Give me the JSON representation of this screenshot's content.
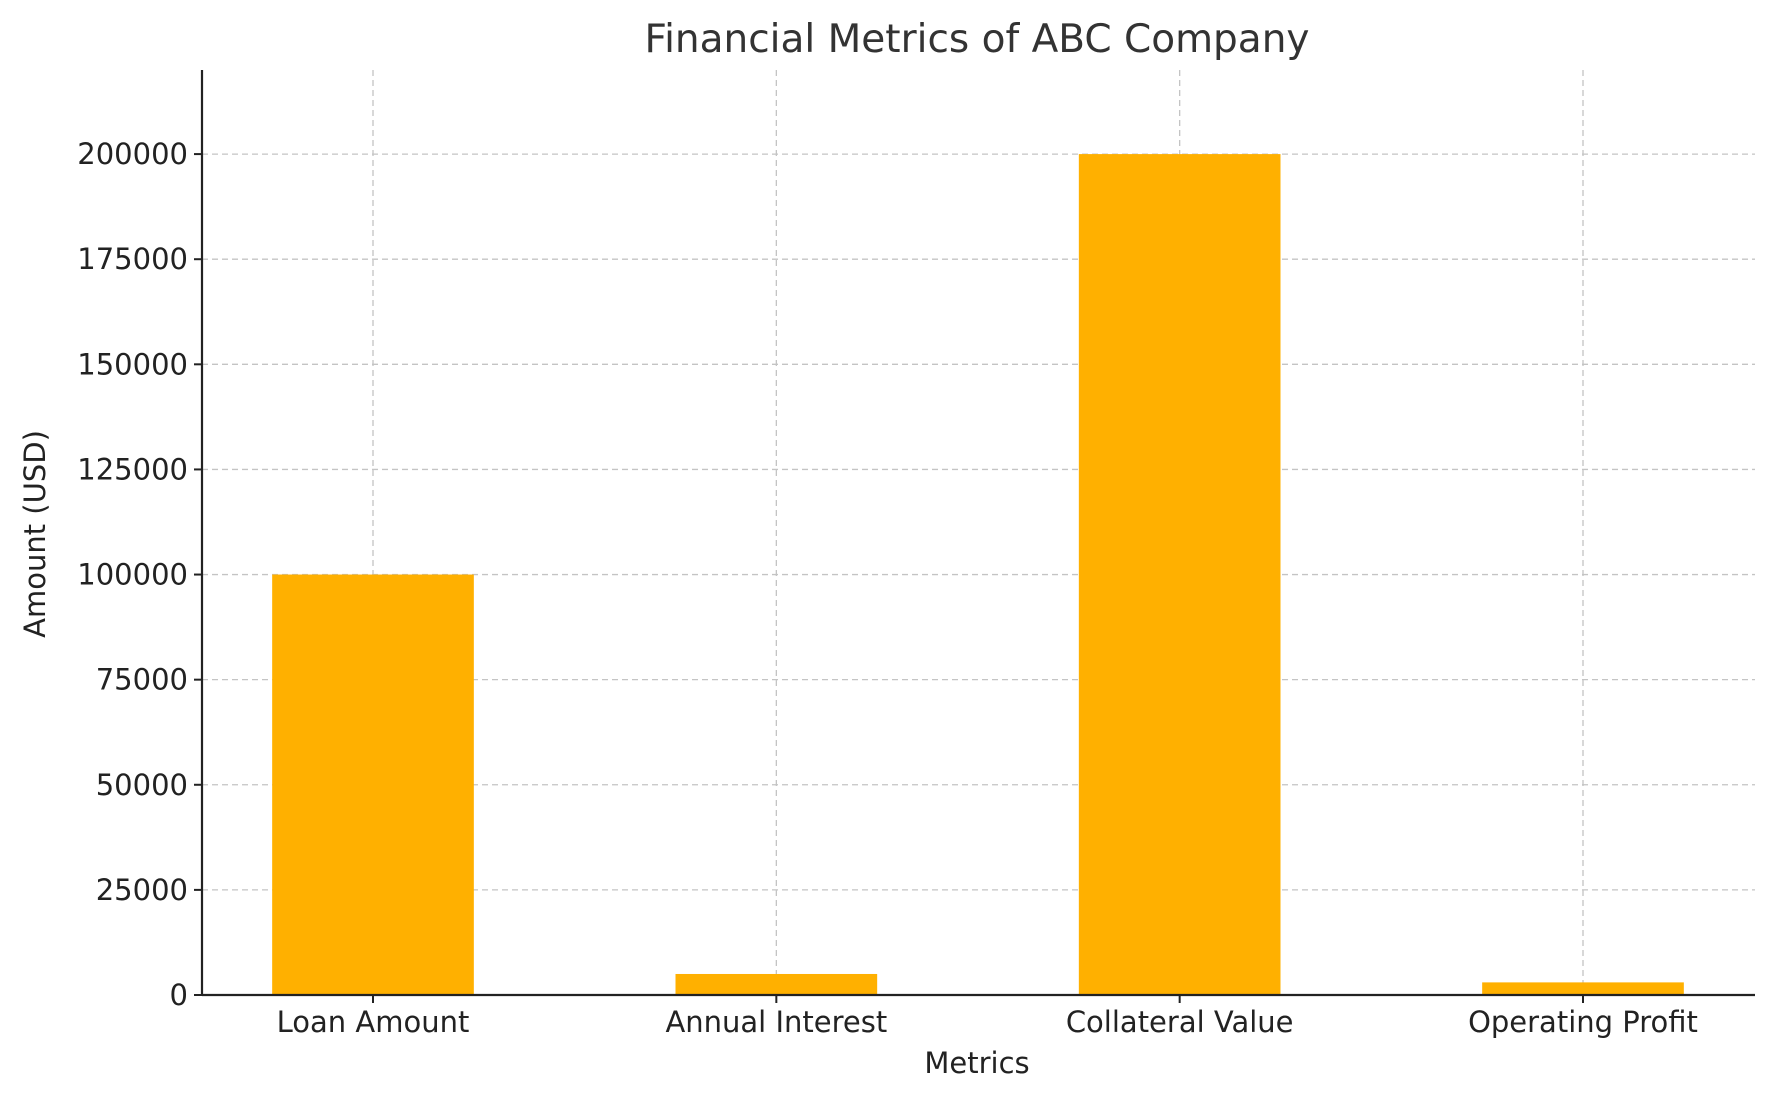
{
  "chart_data": {
    "type": "bar",
    "title": "Financial Metrics of ABC Company",
    "xlabel": "Metrics",
    "ylabel": "Amount (USD)",
    "categories": [
      "Loan Amount",
      "Annual Interest",
      "Collateral Value",
      "Operating Profit"
    ],
    "values": [
      100000,
      5000,
      200000,
      3000
    ],
    "ylim": [
      0,
      220000
    ],
    "yticks": [
      0,
      25000,
      50000,
      75000,
      100000,
      125000,
      150000,
      175000,
      200000
    ],
    "grid": true,
    "bar_color": "#FFB000"
  }
}
